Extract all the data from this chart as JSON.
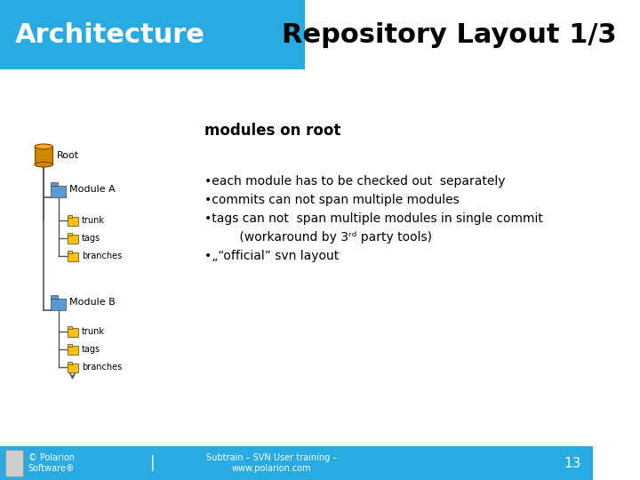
{
  "header_bg_color": "#29ABE2",
  "header_text": "Architecture",
  "header_text_color": "#FFFFFF",
  "title_text": "Repository Layout 1/3",
  "title_text_color": "#000000",
  "section_label": "modules on root",
  "footer_bg_color": "#29ABE2",
  "footer_text_color": "#FFFFFF",
  "footer_left": "© Polarion\nSoftware®",
  "footer_mid": "Subtrain – SVN User training –\nwww.polarion.com",
  "footer_page": "13",
  "bg_color": "#FFFFFF",
  "tree_line_color": "#555555",
  "folder_color_blue": "#5B9BD5",
  "folder_color_yellow": "#FFC000",
  "root_color": "#CC8800"
}
